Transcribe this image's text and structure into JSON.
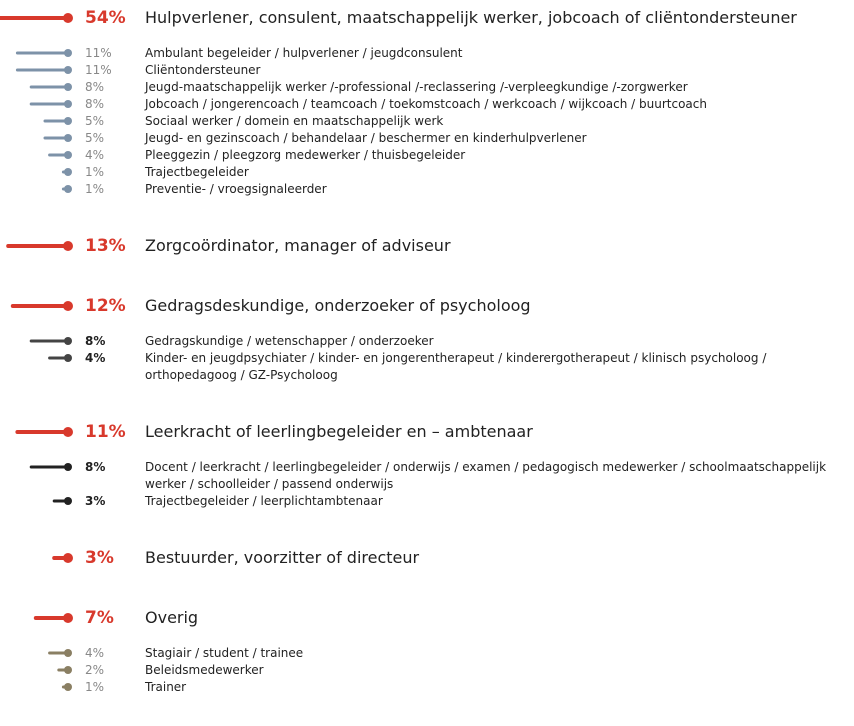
{
  "chart_data": {
    "type": "lollipop",
    "color": "#d8392c",
    "groups": [
      {
        "label": "Hulpverlener, consulent, maatschappelijk werker, jobcoach of cliëntondersteuner",
        "value": 54,
        "value_label": "54%",
        "item_color": "#7d92a8",
        "items": [
          {
            "label": "Ambulant begeleider / hulpverlener / jeugdconsulent",
            "value": 11,
            "value_label": "11%"
          },
          {
            "label": "Cliëntondersteuner",
            "value": 11,
            "value_label": "11%"
          },
          {
            "label": "Jeugd-maatschappelijk werker /-professional /-reclassering /-verpleegkundige /-zorgwerker",
            "value": 8,
            "value_label": "8%"
          },
          {
            "label": "Jobcoach / jongerencoach / teamcoach / toekomstcoach / werkcoach / wijkcoach / buurtcoach",
            "value": 8,
            "value_label": "8%"
          },
          {
            "label": "Sociaal werker / domein en maatschappelijk werk",
            "value": 5,
            "value_label": "5%"
          },
          {
            "label": "Jeugd- en gezinscoach / behandelaar / beschermer en kinderhulpverlener",
            "value": 5,
            "value_label": "5%"
          },
          {
            "label": "Pleeggezin / pleegzorg medewerker / thuisbegeleider",
            "value": 4,
            "value_label": "4%"
          },
          {
            "label": "Trajectbegeleider",
            "value": 1,
            "value_label": "1%"
          },
          {
            "label": "Preventie- / vroegsignaleerder",
            "value": 1,
            "value_label": "1%"
          }
        ]
      },
      {
        "label": "Zorgcoördinator, manager of adviseur",
        "value": 13,
        "value_label": "13%",
        "item_color": "#555555",
        "items": []
      },
      {
        "label": "Gedragsdeskundige, onderzoeker of psycholoog",
        "value": 12,
        "value_label": "12%",
        "item_color": "#444444",
        "items": [
          {
            "label": "Gedragskundige / wetenschapper / onderzoeker",
            "value": 8,
            "value_label": "8%"
          },
          {
            "label": "Kinder- en jeugdpsychiater / kinder- en jongerentherapeut / kinderergotherapeut / klinisch psycholoog / orthopedagoog / GZ-Psycholoog",
            "value": 4,
            "value_label": "4%"
          }
        ]
      },
      {
        "label": "Leerkracht of leerlingbegeleider en – ambtenaar",
        "value": 11,
        "value_label": "11%",
        "item_color": "#222222",
        "items": [
          {
            "label": "Docent / leerkracht / leerlingbegeleider / onderwijs / examen / pedagogisch medewerker / schoolmaatschappelijk werker / schoolleider / passend onderwijs",
            "value": 8,
            "value_label": "8%"
          },
          {
            "label": "Trajectbegeleider / leerplichtambtenaar",
            "value": 3,
            "value_label": "3%"
          }
        ]
      },
      {
        "label": "Bestuurder, voorzitter of directeur",
        "value": 3,
        "value_label": "3%",
        "item_color": "#555555",
        "items": []
      },
      {
        "label": "Overig",
        "value": 7,
        "value_label": "7%",
        "item_color": "#8a7f63",
        "items": [
          {
            "label": "Stagiair / student / trainee",
            "value": 4,
            "value_label": "4%"
          },
          {
            "label": "Beleidsmedewerker",
            "value": 2,
            "value_label": "2%"
          },
          {
            "label": "Trainer",
            "value": 1,
            "value_label": "1%"
          }
        ]
      }
    ]
  }
}
